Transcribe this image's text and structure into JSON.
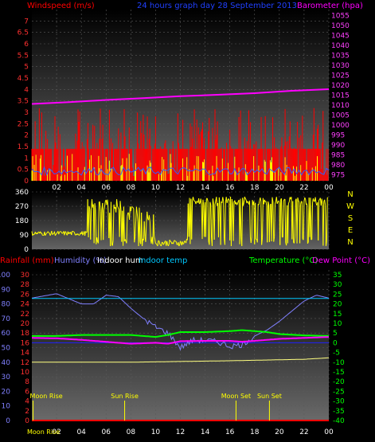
{
  "header": {
    "windspeed": "Windspeed (m/s)",
    "title": "24 hours graph day  28 September 2013",
    "barometer": "Barometer (hpa)"
  },
  "compass": [
    "N",
    "W",
    "S",
    "E",
    "N"
  ],
  "bottom_headers": {
    "rainfall": "Rainfall (mm)",
    "humidity": "Humidity (%)",
    "indoor_hum": "Indoor hum",
    "indoor_temp": "Indoor temp",
    "temperature": "Temperature (°C)",
    "dew_point": "Dew Point (°C)"
  },
  "astro": {
    "moon_rise": "Moon Rise",
    "sun_rise": "Sun Rise",
    "moon_set": "Moon Set",
    "sun_set": "Sun Set"
  },
  "colors": {
    "windspeed": "#ff0000",
    "wind_avg": "#3060ff",
    "gust": "#ffff00",
    "barometer": "#ff00ff",
    "direction": "#ffff00",
    "humidity": "#8080ff",
    "indoor_temp": "#00c8ff",
    "temperature": "#00ff00",
    "dew_point": "#ff00ff",
    "indoor_hum": "#ffff80",
    "rainfall": "#ff0000"
  },
  "chart_data": [
    {
      "type": "line",
      "name": "windspeed-barometer",
      "x_ticks": [
        "02",
        "04",
        "06",
        "08",
        "10",
        "12",
        "14",
        "16",
        "18",
        "20",
        "22",
        "00"
      ],
      "y_left_ticks": [
        "0",
        "0.5",
        "1",
        "1.5",
        "2",
        "2.5",
        "3",
        "3.5",
        "4",
        "4.5",
        "5",
        "5.5",
        "6",
        "6.5",
        "7"
      ],
      "y_right_ticks": [
        "975",
        "980",
        "985",
        "990",
        "995",
        "1000",
        "1005",
        "1010",
        "1015",
        "1020",
        "1025",
        "1030",
        "1035",
        "1040",
        "1045",
        "1050",
        "1055"
      ],
      "ylim_left": [
        0,
        7.5
      ],
      "ylim_right": [
        972,
        1058
      ],
      "windspeed_base": 1.4,
      "windspeed_peak": 3.2,
      "barometer": {
        "x": [
          0,
          3,
          6,
          9,
          12,
          15,
          18,
          21,
          24
        ],
        "y": [
          1010.6,
          1011.5,
          1012.6,
          1013.5,
          1014.5,
          1015.2,
          1016.0,
          1017.2,
          1018.0
        ]
      }
    },
    {
      "type": "scatter",
      "name": "wind-direction",
      "y_ticks": [
        "0",
        "90",
        "180",
        "270",
        "360"
      ],
      "ylim": [
        0,
        360
      ],
      "segments": [
        {
          "from": 0,
          "to": 4.5,
          "level": 100,
          "spread": 30
        },
        {
          "from": 4.5,
          "to": 7.5,
          "level": 270,
          "spread": 90
        },
        {
          "from": 7.5,
          "to": 10,
          "level": 230,
          "spread": 120
        },
        {
          "from": 10,
          "to": 12.5,
          "level": 40,
          "spread": 40
        },
        {
          "from": 12.5,
          "to": 24,
          "level": 300,
          "spread": 60
        }
      ]
    },
    {
      "type": "line",
      "name": "temperature-humidity",
      "y_left_ticks": [
        "0",
        "10",
        "20",
        "30",
        "40",
        "50",
        "60",
        "70",
        "80",
        "90",
        "100"
      ],
      "y_left_ylim": [
        0,
        100
      ],
      "y_rain_ticks": [
        "0",
        "2",
        "4",
        "6",
        "8",
        "10",
        "12",
        "14",
        "16",
        "18",
        "20",
        "22",
        "24",
        "26",
        "28",
        "30"
      ],
      "y_right_ticks": [
        "35",
        "30",
        "25",
        "20",
        "15",
        "10",
        "5",
        "0",
        "-5",
        "-10",
        "-15",
        "-20",
        "-25",
        "-30",
        "-35",
        "-40"
      ],
      "y_right_ylim": [
        -40,
        35
      ],
      "series": [
        {
          "name": "Humidity (%)",
          "axis": "left",
          "x": [
            0,
            2,
            4,
            5,
            6,
            7,
            8,
            9,
            10,
            11,
            12,
            13,
            14,
            15,
            16,
            17,
            18,
            19,
            20,
            21,
            22,
            23,
            24
          ],
          "y": [
            84,
            87,
            80,
            80,
            86,
            85,
            77,
            70,
            64,
            60,
            50,
            55,
            55,
            54,
            51,
            52,
            58,
            62,
            68,
            75,
            82,
            86,
            84
          ]
        },
        {
          "name": "Indoor temp",
          "axis": "right",
          "x": [
            0,
            24
          ],
          "y": [
            22.8,
            22.8
          ]
        },
        {
          "name": "Temperature (°C)",
          "axis": "right",
          "x": [
            0,
            2,
            4,
            6,
            8,
            10,
            11,
            12,
            14,
            16,
            17,
            18,
            19,
            20,
            22,
            24
          ],
          "y": [
            3.5,
            3.5,
            4.0,
            4.0,
            4.0,
            3.0,
            4.0,
            5.5,
            5.5,
            6.0,
            6.5,
            6.0,
            5.5,
            4.5,
            3.8,
            3.5
          ]
        },
        {
          "name": "Dew Point (°C)",
          "axis": "right",
          "x": [
            0,
            2,
            4,
            6,
            8,
            10,
            11,
            12,
            14,
            16,
            17,
            18,
            20,
            22,
            24
          ],
          "y": [
            2.5,
            2.3,
            1.5,
            0.5,
            -0.5,
            0.0,
            -0.5,
            0.8,
            1.0,
            1.0,
            0.5,
            1.0,
            2.0,
            2.5,
            3.0
          ]
        },
        {
          "name": "Indoor hum",
          "axis": "left",
          "x": [
            0,
            8,
            16,
            22,
            24
          ],
          "y": [
            40,
            40,
            41,
            42,
            43
          ]
        },
        {
          "name": "Rainfall (mm)",
          "axis": "rain",
          "x": [
            0,
            24
          ],
          "y": [
            0,
            0
          ]
        }
      ],
      "events": [
        {
          "label_key": "moon_rise",
          "hour": 0.1
        },
        {
          "label_key": "sun_rise",
          "hour": 7.5
        },
        {
          "label_key": "moon_set",
          "hour": 16.5
        },
        {
          "label_key": "sun_set",
          "hour": 19.2
        }
      ]
    }
  ]
}
